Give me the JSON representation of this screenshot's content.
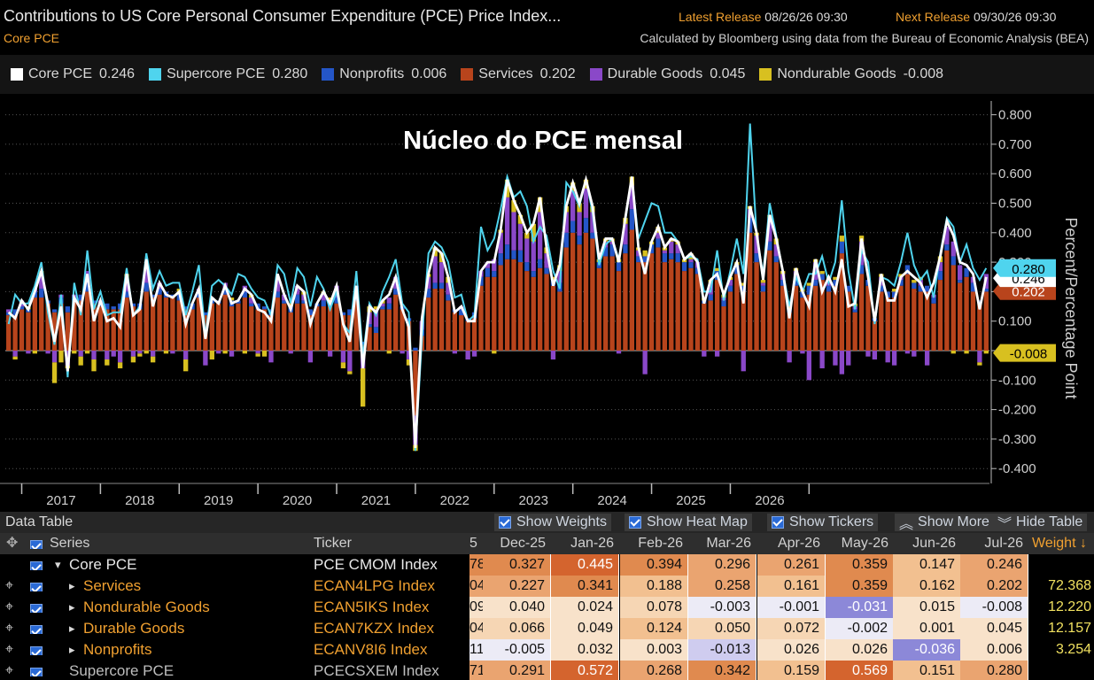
{
  "header": {
    "title": "Contributions to US Core Personal Consumer Expenditure (PCE) Price Index...",
    "subtitle": "Core PCE",
    "latest_release_label": "Latest Release",
    "latest_release_value": "08/26/26 09:30",
    "next_release_label": "Next Release",
    "next_release_value": "09/30/26 09:30",
    "calc_note": "Calculated by Bloomberg using data from the Bureau of Economic Analysis (BEA)"
  },
  "legend": [
    {
      "name": "Core PCE",
      "value": "0.246",
      "color": "#ffffff"
    },
    {
      "name": "Supercore PCE",
      "value": "0.280",
      "color": "#4fd4ee"
    },
    {
      "name": "Nonprofits",
      "value": "0.006",
      "color": "#2456c8"
    },
    {
      "name": "Services",
      "value": "0.202",
      "color": "#b8441c"
    },
    {
      "name": "Durable Goods",
      "value": "0.045",
      "color": "#8a48c8"
    },
    {
      "name": "Nondurable Goods",
      "value": "-0.008",
      "color": "#d8c020"
    }
  ],
  "chart_data": {
    "type": "bar",
    "title": "Núcleo do PCE mensal",
    "ylabel": "Percent/Percentage Point",
    "ylim": [
      -0.45,
      0.82
    ],
    "yticks": [
      "0.800",
      "0.700",
      "0.600",
      "0.500",
      "0.400",
      "0.300",
      "0.200",
      "0.100",
      "0.000",
      "-0.100",
      "-0.200",
      "-0.300",
      "-0.400"
    ],
    "xticks": [
      "2017",
      "2018",
      "2019",
      "2020",
      "2021",
      "2022",
      "2023",
      "2024",
      "2025",
      "2026"
    ],
    "end_labels": {
      "supercore": "0.280",
      "core": "0.246",
      "services": "0.202",
      "nondurable": "-0.008"
    },
    "series": [
      {
        "name": "Core PCE",
        "values": [
          0.13,
          0.11,
          0.17,
          0.14,
          0.2,
          0.27,
          0.16,
          0.03,
          0.15,
          -0.07,
          0.18,
          0.14,
          0.26,
          0.1,
          0.17,
          0.1,
          0.11,
          0.08,
          0.26,
          0.12,
          0.14,
          0.31,
          0.15,
          0.23,
          0.19,
          0.18,
          0.2,
          0.09,
          0.16,
          0.21,
          0.04,
          0.18,
          0.16,
          0.22,
          0.16,
          0.17,
          0.21,
          0.19,
          0.14,
          0.13,
          0.1,
          0.26,
          0.19,
          0.14,
          0.22,
          0.2,
          0.09,
          0.16,
          0.2,
          0.16,
          0.22,
          0.09,
          0.03,
          0.22,
          -0.06,
          0.15,
          0.13,
          0.17,
          0.19,
          0.25,
          0.14,
          0.08,
          -0.33,
          0.11,
          0.26,
          0.35,
          0.33,
          0.25,
          0.13,
          0.15,
          0.1,
          0.1,
          0.27,
          0.3,
          0.3,
          0.41,
          0.58,
          0.51,
          0.46,
          0.4,
          0.43,
          0.52,
          0.35,
          0.22,
          0.29,
          0.49,
          0.57,
          0.5,
          0.58,
          0.49,
          0.31,
          0.38,
          0.38,
          0.3,
          0.45,
          0.59,
          0.35,
          0.26,
          0.37,
          0.42,
          0.35,
          0.38,
          0.37,
          0.31,
          0.33,
          0.3,
          0.16,
          0.24,
          0.26,
          0.19,
          0.25,
          0.3,
          0.16,
          0.49,
          0.4,
          0.24,
          0.46,
          0.38,
          0.27,
          0.11,
          0.28,
          0.2,
          0.15,
          0.31,
          0.2,
          0.25,
          0.2,
          0.31,
          0.15,
          0.16,
          0.38,
          0.25,
          0.1,
          0.26,
          0.17,
          0.17,
          0.25,
          0.27,
          0.25,
          0.23,
          0.18,
          0.23,
          0.32,
          0.44,
          0.39,
          0.3,
          0.29,
          0.26,
          0.14,
          0.25
        ]
      },
      {
        "name": "Supercore PCE",
        "values": [
          0.09,
          0.19,
          0.16,
          0.16,
          0.22,
          0.3,
          0.13,
          0.02,
          0.19,
          -0.09,
          0.23,
          0.12,
          0.34,
          0.14,
          0.2,
          0.12,
          0.13,
          0.13,
          0.28,
          0.12,
          0.15,
          0.33,
          0.21,
          0.27,
          0.22,
          0.23,
          0.23,
          0.12,
          0.2,
          0.29,
          0.05,
          0.22,
          0.24,
          0.22,
          0.19,
          0.26,
          0.25,
          0.21,
          0.18,
          0.17,
          0.12,
          0.29,
          0.26,
          0.16,
          0.28,
          0.25,
          0.15,
          0.25,
          0.21,
          0.14,
          0.2,
          0.09,
          0.06,
          0.27,
          -0.02,
          0.16,
          0.12,
          0.2,
          0.25,
          0.31,
          0.16,
          0.13,
          -0.34,
          0.04,
          0.33,
          0.37,
          0.35,
          0.3,
          0.18,
          0.19,
          0.1,
          0.12,
          0.42,
          0.34,
          0.38,
          0.48,
          0.59,
          0.52,
          0.54,
          0.49,
          0.37,
          0.42,
          0.39,
          0.27,
          0.21,
          0.57,
          0.54,
          0.49,
          0.58,
          0.47,
          0.29,
          0.36,
          0.38,
          0.31,
          0.44,
          0.59,
          0.38,
          0.44,
          0.5,
          0.49,
          0.4,
          0.4,
          0.37,
          0.31,
          0.32,
          0.31,
          0.2,
          0.2,
          0.34,
          0.17,
          0.27,
          0.38,
          0.26,
          0.77,
          0.39,
          0.26,
          0.5,
          0.39,
          0.27,
          0.15,
          0.25,
          0.2,
          0.26,
          0.26,
          0.32,
          0.23,
          0.3,
          0.51,
          0.27,
          0.14,
          0.34,
          0.3,
          0.09,
          0.25,
          0.24,
          0.22,
          0.3,
          0.4,
          0.29,
          0.24,
          0.27,
          0.18,
          0.33,
          0.45,
          0.42,
          0.3,
          0.36,
          0.28,
          0.24,
          0.28
        ]
      },
      {
        "name": "Services",
        "values": [
          0.12,
          0.12,
          0.14,
          0.13,
          0.18,
          0.18,
          0.16,
          0.13,
          0.16,
          0.13,
          0.17,
          0.17,
          0.2,
          0.16,
          0.15,
          0.14,
          0.14,
          0.14,
          0.18,
          0.15,
          0.14,
          0.2,
          0.18,
          0.19,
          0.18,
          0.18,
          0.17,
          0.14,
          0.14,
          0.18,
          0.12,
          0.16,
          0.16,
          0.19,
          0.15,
          0.16,
          0.18,
          0.15,
          0.14,
          0.14,
          0.12,
          0.18,
          0.16,
          0.13,
          0.16,
          0.16,
          0.12,
          0.15,
          0.15,
          0.15,
          0.16,
          0.12,
          0.12,
          0.17,
          0.02,
          0.08,
          0.06,
          0.14,
          0.14,
          0.19,
          0.14,
          0.1,
          -0.22,
          0.05,
          0.18,
          0.21,
          0.21,
          0.17,
          0.13,
          0.12,
          0.1,
          0.11,
          0.22,
          0.25,
          0.25,
          0.29,
          0.31,
          0.31,
          0.3,
          0.27,
          0.25,
          0.28,
          0.26,
          0.22,
          0.2,
          0.35,
          0.4,
          0.36,
          0.4,
          0.38,
          0.28,
          0.32,
          0.32,
          0.27,
          0.33,
          0.41,
          0.3,
          0.3,
          0.33,
          0.35,
          0.3,
          0.31,
          0.3,
          0.27,
          0.28,
          0.26,
          0.16,
          0.17,
          0.24,
          0.15,
          0.2,
          0.26,
          0.2,
          0.4,
          0.3,
          0.2,
          0.34,
          0.3,
          0.22,
          0.13,
          0.22,
          0.18,
          0.19,
          0.22,
          0.24,
          0.2,
          0.22,
          0.33,
          0.2,
          0.13,
          0.26,
          0.22,
          0.1,
          0.2,
          0.18,
          0.18,
          0.22,
          0.26,
          0.21,
          0.2,
          0.2,
          0.16,
          0.24,
          0.34,
          0.29,
          0.23,
          0.25,
          0.2,
          0.16,
          0.2
        ]
      },
      {
        "name": "Nonprofits",
        "values": [
          0.01,
          0.02,
          0.01,
          0.01,
          0.02,
          0.03,
          0.01,
          0.01,
          0.02,
          0.02,
          0.01,
          0.02,
          0.03,
          0.01,
          0.01,
          0.02,
          0.01,
          0.02,
          0.02,
          0.01,
          0.02,
          0.03,
          0.01,
          0.02,
          0.02,
          0.01,
          0.02,
          0.01,
          0.02,
          0.02,
          0.01,
          0.02,
          0.01,
          0.02,
          0.02,
          0.01,
          0.02,
          0.01,
          0.02,
          0.01,
          0.02,
          0.02,
          0.01,
          0.02,
          0.03,
          0.01,
          0.02,
          0.01,
          0.02,
          0.01,
          0.02,
          0.01,
          0.02,
          0.02,
          0.01,
          0.01,
          0.02,
          0.01,
          0.02,
          0.02,
          0.01,
          0.01,
          0.01,
          0.02,
          0.03,
          0.02,
          0.02,
          0.02,
          0.01,
          0.02,
          0.01,
          0.02,
          0.03,
          0.03,
          0.02,
          0.04,
          0.05,
          0.03,
          0.04,
          0.03,
          0.02,
          0.03,
          0.02,
          0.02,
          0.03,
          0.05,
          0.04,
          0.03,
          0.05,
          0.02,
          0.02,
          0.03,
          0.04,
          0.03,
          0.03,
          0.07,
          0.02,
          0.02,
          0.03,
          0.03,
          0.03,
          0.02,
          0.03,
          0.03,
          0.02,
          0.02,
          0.01,
          0.02,
          0.03,
          0.02,
          0.02,
          0.03,
          0.02,
          0.05,
          0.03,
          0.02,
          0.03,
          0.02,
          0.02,
          0.01,
          0.02,
          0.02,
          0.03,
          0.02,
          0.02,
          0.02,
          0.02,
          0.04,
          0.02,
          0.01,
          0.03,
          0.02,
          0.01,
          0.02,
          0.02,
          0.02,
          0.02,
          0.03,
          0.02,
          0.02,
          0.02,
          0.02,
          0.03,
          0.02,
          0.03,
          0.01,
          0.03,
          0.03,
          0.01,
          0.01
        ]
      },
      {
        "name": "Durable Goods",
        "values": [
          0.01,
          -0.02,
          0.02,
          -0.01,
          0.01,
          0.05,
          -0.01,
          -0.04,
          0.01,
          -0.05,
          0.01,
          -0.02,
          0.04,
          -0.03,
          0.01,
          -0.03,
          -0.02,
          -0.04,
          0.04,
          -0.02,
          -0.01,
          0.06,
          -0.02,
          0.02,
          0.0,
          -0.01,
          0.01,
          -0.03,
          0.0,
          0.01,
          -0.05,
          0.0,
          -0.01,
          0.02,
          -0.02,
          0.0,
          0.02,
          0.02,
          -0.01,
          0.0,
          -0.04,
          0.05,
          0.02,
          -0.01,
          0.03,
          0.02,
          -0.04,
          0.0,
          0.02,
          -0.02,
          0.04,
          -0.04,
          -0.07,
          0.03,
          -0.06,
          0.04,
          0.06,
          0.01,
          0.02,
          0.04,
          -0.01,
          -0.03,
          -0.1,
          0.03,
          0.04,
          0.09,
          0.07,
          0.04,
          -0.01,
          0.01,
          -0.03,
          -0.02,
          0.02,
          0.02,
          0.04,
          0.07,
          0.16,
          0.13,
          0.09,
          0.08,
          0.1,
          0.16,
          0.05,
          -0.03,
          0.04,
          0.07,
          0.1,
          0.08,
          0.1,
          0.07,
          0.0,
          0.02,
          0.01,
          -0.01,
          0.07,
          0.08,
          0.02,
          -0.08,
          0.0,
          0.02,
          0.01,
          0.04,
          0.03,
          0.0,
          0.01,
          0.02,
          -0.02,
          0.04,
          -0.02,
          0.01,
          0.02,
          0.0,
          -0.07,
          0.03,
          0.06,
          0.01,
          0.08,
          0.04,
          0.02,
          -0.04,
          0.03,
          -0.01,
          -0.1,
          0.06,
          -0.06,
          0.02,
          -0.05,
          -0.08,
          -0.05,
          0.01,
          0.08,
          -0.02,
          -0.03,
          0.03,
          -0.04,
          -0.05,
          0.01,
          -0.01,
          -0.02,
          0.02,
          -0.05,
          0.01,
          0.03,
          0.06,
          0.05,
          0.05,
          0.0,
          0.02,
          -0.04,
          0.05
        ]
      },
      {
        "name": "Nondurable Goods",
        "values": [
          0.0,
          -0.01,
          0.0,
          0.01,
          -0.01,
          0.01,
          0.0,
          -0.07,
          -0.04,
          -0.01,
          -0.01,
          -0.03,
          -0.01,
          -0.04,
          0.0,
          -0.02,
          0.0,
          -0.02,
          0.02,
          -0.02,
          -0.01,
          -0.01,
          -0.02,
          0.0,
          -0.01,
          0.0,
          0.01,
          -0.04,
          0.0,
          0.0,
          0.0,
          -0.03,
          0.0,
          -0.01,
          0.01,
          0.0,
          -0.01,
          0.01,
          -0.01,
          -0.02,
          0.0,
          0.0,
          0.0,
          0.01,
          0.0,
          0.01,
          0.0,
          0.0,
          0.01,
          0.02,
          0.0,
          -0.02,
          -0.01,
          0.0,
          -0.13,
          0.02,
          0.01,
          0.01,
          -0.01,
          0.0,
          0.0,
          -0.02,
          -0.02,
          0.0,
          0.01,
          0.03,
          0.03,
          0.02,
          0.0,
          0.0,
          0.0,
          0.0,
          0.0,
          0.0,
          -0.01,
          0.01,
          0.06,
          0.04,
          0.03,
          0.02,
          0.06,
          0.05,
          0.02,
          0.01,
          0.02,
          0.02,
          0.03,
          0.03,
          0.03,
          0.02,
          0.01,
          0.01,
          0.01,
          0.01,
          0.02,
          0.03,
          0.01,
          0.02,
          0.01,
          0.02,
          0.01,
          0.01,
          0.01,
          0.01,
          0.02,
          0.0,
          0.01,
          0.01,
          0.01,
          0.01,
          0.01,
          0.01,
          0.01,
          0.01,
          0.01,
          0.01,
          0.01,
          0.02,
          0.01,
          0.01,
          0.01,
          0.01,
          0.01,
          0.01,
          0.01,
          0.01,
          0.01,
          0.02,
          0.0,
          0.01,
          0.02,
          0.0,
          0.0,
          0.01,
          0.0,
          0.01,
          0.01,
          0.0,
          0.01,
          0.01,
          0.0,
          0.0,
          0.02,
          0.0,
          -0.01,
          0.0,
          -0.01,
          0.0,
          -0.01,
          -0.01
        ]
      }
    ]
  },
  "data_table": {
    "label": "Data Table",
    "toggles": [
      "Show Weights",
      "Show Heat Map",
      "Show Tickers"
    ],
    "show_more": "Show More",
    "hide_table": "Hide Table",
    "headers": {
      "series": "Series",
      "ticker": "Ticker",
      "partial": "5",
      "weight": "Weight ↓"
    },
    "months": [
      "Dec-25",
      "Jan-26",
      "Feb-26",
      "Mar-26",
      "Apr-26",
      "May-26",
      "Jun-26",
      "Jul-26"
    ],
    "rows": [
      {
        "name": "Core PCE",
        "marker": "▾",
        "ticker": "PCE CMOM Index",
        "partial": "78",
        "values": [
          "0.327",
          "0.445",
          "0.394",
          "0.296",
          "0.261",
          "0.359",
          "0.147",
          "0.246"
        ],
        "weight": ""
      },
      {
        "name": "Services",
        "marker": "▸",
        "ticker": "ECAN4LPG Index",
        "partial": "04",
        "values": [
          "0.227",
          "0.341",
          "0.188",
          "0.258",
          "0.161",
          "0.359",
          "0.162",
          "0.202"
        ],
        "weight": "72.368"
      },
      {
        "name": "Nondurable Goods",
        "marker": "▸",
        "ticker": "ECAN5IKS Index",
        "partial": "09",
        "values": [
          "0.040",
          "0.024",
          "0.078",
          "-0.003",
          "-0.001",
          "-0.031",
          "0.015",
          "-0.008"
        ],
        "weight": "12.220"
      },
      {
        "name": "Durable Goods",
        "marker": "▸",
        "ticker": "ECAN7KZX Index",
        "partial": "04",
        "values": [
          "0.066",
          "0.049",
          "0.124",
          "0.050",
          "0.072",
          "-0.002",
          "0.001",
          "0.045"
        ],
        "weight": "12.157"
      },
      {
        "name": "Nonprofits",
        "marker": "▸",
        "ticker": "ECANV8I6 Index",
        "partial": "11",
        "values": [
          "-0.005",
          "0.032",
          "0.003",
          "-0.013",
          "0.026",
          "0.026",
          "-0.036",
          "0.006"
        ],
        "weight": "3.254"
      },
      {
        "name": "Supercore PCE",
        "marker": "",
        "ticker": "PCECSXEM Index",
        "partial": "71",
        "values": [
          "0.291",
          "0.572",
          "0.268",
          "0.342",
          "0.159",
          "0.569",
          "0.151",
          "0.280"
        ],
        "weight": ""
      }
    ]
  }
}
